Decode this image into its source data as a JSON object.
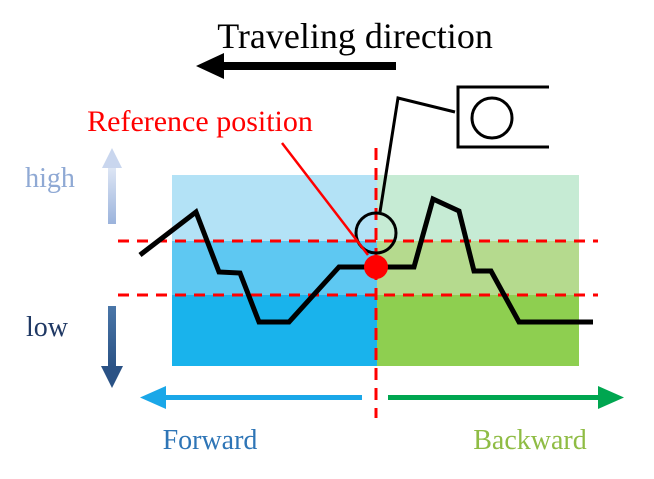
{
  "title": "Traveling direction",
  "reference_label": "Reference position",
  "level_labels": {
    "high": "high",
    "low": "low"
  },
  "direction_labels": {
    "forward": "Forward",
    "backward": "Backward"
  },
  "colors": {
    "title_text": "#000000",
    "reference": "#ff0000",
    "high_label": "#8fa9d4",
    "low_label": "#1f3864",
    "high_arrow_top": "#c9d6ee",
    "high_arrow_bottom": "#9bb3dc",
    "low_arrow": "#2f5a8c",
    "forward_text": "#2e75b6",
    "forward_arrow": "#1aa7e8",
    "backward_text": "#8fbc44",
    "backward_arrow": "#00a650",
    "forward_band_top": "#b3e2f6",
    "forward_band_mid": "#5ec8f2",
    "forward_band_bottom": "#19b3ec",
    "backward_band_top": "#c6ebd4",
    "backward_band_mid": "#b5da8e",
    "backward_band_bottom": "#8ecf50",
    "profile_line": "#000000"
  },
  "icons": {
    "title_arrow": "left-arrow-icon",
    "sensor": "sensor-icon",
    "high_arrow": "up-arrow-icon",
    "low_arrow": "down-arrow-icon"
  }
}
